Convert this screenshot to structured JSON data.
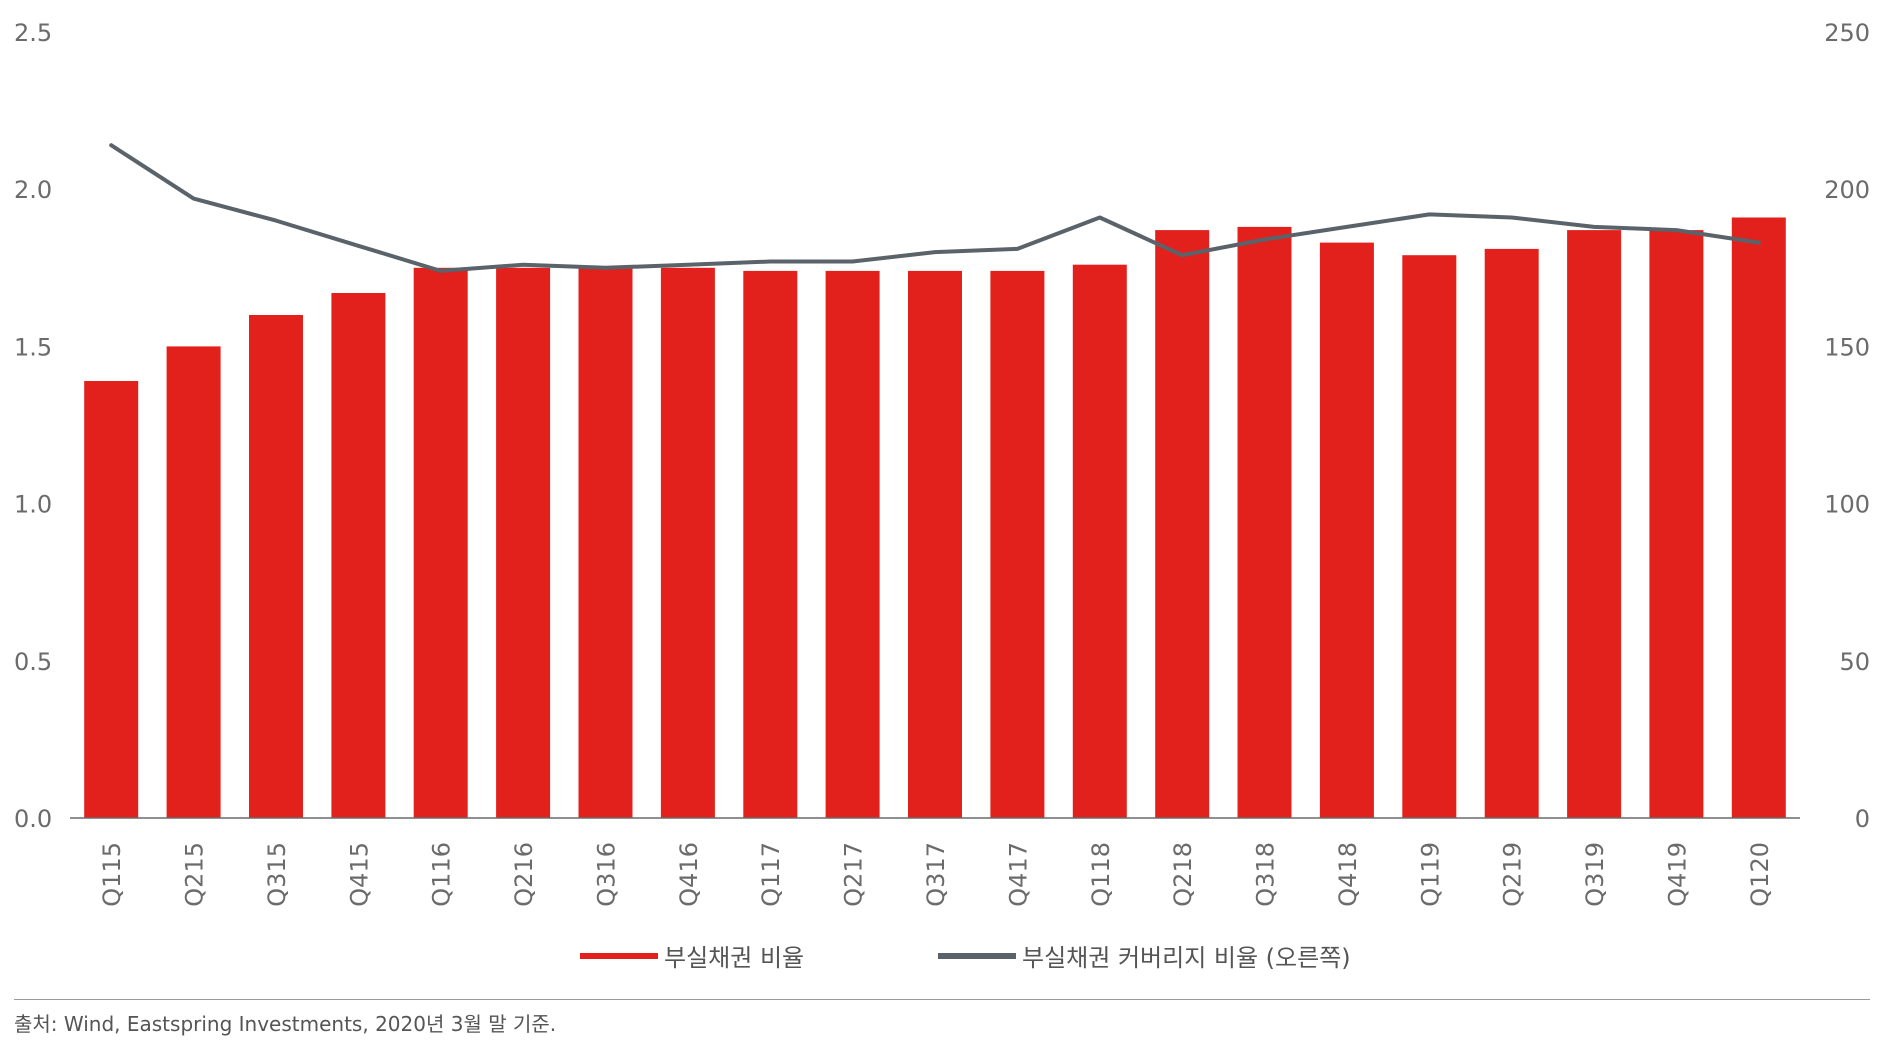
{
  "chart_data": {
    "type": "bar",
    "categories": [
      "Q115",
      "Q215",
      "Q315",
      "Q415",
      "Q116",
      "Q216",
      "Q316",
      "Q416",
      "Q117",
      "Q217",
      "Q317",
      "Q417",
      "Q118",
      "Q218",
      "Q318",
      "Q418",
      "Q119",
      "Q219",
      "Q319",
      "Q419",
      "Q120"
    ],
    "series": [
      {
        "name": "부실채권 비율",
        "type": "bar",
        "axis": "left",
        "color": "#e2211c",
        "values": [
          1.39,
          1.5,
          1.6,
          1.67,
          1.75,
          1.75,
          1.75,
          1.75,
          1.74,
          1.74,
          1.74,
          1.74,
          1.76,
          1.87,
          1.88,
          1.83,
          1.79,
          1.81,
          1.87,
          1.87,
          1.91
        ]
      },
      {
        "name": "부실채권 커버리지 비율 (오른쪽)",
        "type": "line",
        "axis": "right",
        "color": "#5a626a",
        "values": [
          214,
          197,
          190,
          182,
          174,
          176,
          175,
          176,
          177,
          177,
          180,
          181,
          191,
          179,
          184,
          188,
          192,
          191,
          188,
          187,
          183
        ]
      }
    ],
    "y_left": {
      "min": 0,
      "max": 2.5,
      "ticks": [
        "0.0",
        "0.5",
        "1.0",
        "1.5",
        "2.0",
        "2.5"
      ]
    },
    "y_right": {
      "min": 0,
      "max": 250,
      "ticks": [
        "0",
        "50",
        "100",
        "150",
        "200",
        "250"
      ]
    },
    "grid": false,
    "legend_position": "bottom"
  },
  "legend": [
    {
      "label": "부실채권 비율",
      "color": "#e2211c"
    },
    {
      "label": "부실채권 커버리지 비율 (오른쪽)",
      "color": "#5a626a"
    }
  ],
  "source": "출처: Wind, Eastspring Investments, 2020년 3월 말 기준."
}
